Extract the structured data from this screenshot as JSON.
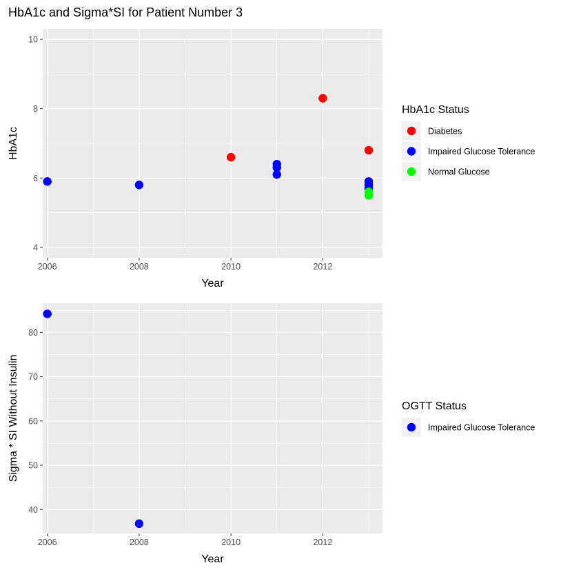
{
  "title": "HbA1c and Sigma*SI for Patient Number 3",
  "colors": {
    "Diabetes": "#ff0000",
    "Impaired Glucose Tolerance": "#0000ff",
    "Normal Glucose": "#00ff00",
    "panel": "#ebebeb",
    "grid": "#ffffff"
  },
  "chart_data": [
    {
      "type": "scatter",
      "xlabel": "Year",
      "ylabel": "HbA1c",
      "xlim": [
        2005.9,
        2013.3
      ],
      "ylim": [
        3.7,
        10.3
      ],
      "x_ticks": [
        2006,
        2008,
        2010,
        2012
      ],
      "y_ticks": [
        4,
        6,
        8,
        10
      ],
      "grid": true,
      "legend": {
        "title": "HbA1c Status",
        "placement": "right",
        "entries": [
          "Diabetes",
          "Impaired Glucose Tolerance",
          "Normal Glucose"
        ]
      },
      "series": [
        {
          "name": "Diabetes",
          "points": [
            [
              2010,
              6.6
            ],
            [
              2012,
              8.3
            ],
            [
              2013,
              6.8
            ]
          ]
        },
        {
          "name": "Impaired Glucose Tolerance",
          "points": [
            [
              2006,
              5.9
            ],
            [
              2008,
              5.8
            ],
            [
              2011,
              6.4
            ],
            [
              2011,
              6.3
            ],
            [
              2011,
              6.1
            ],
            [
              2013,
              5.9
            ],
            [
              2013,
              5.8
            ],
            [
              2013,
              5.7
            ]
          ]
        },
        {
          "name": "Normal Glucose",
          "points": [
            [
              2013,
              5.6
            ],
            [
              2013,
              5.5
            ]
          ]
        }
      ]
    },
    {
      "type": "scatter",
      "xlabel": "Year",
      "ylabel": "Sigma * SI Without Insulin",
      "xlim": [
        2005.9,
        2013.3
      ],
      "ylim": [
        34.6,
        86.6
      ],
      "x_ticks": [
        2006,
        2008,
        2010,
        2012
      ],
      "y_ticks": [
        40,
        50,
        60,
        70,
        80
      ],
      "grid": true,
      "legend": {
        "title": "OGTT Status",
        "placement": "right",
        "entries": [
          "Impaired Glucose Tolerance"
        ]
      },
      "series": [
        {
          "name": "Impaired Glucose Tolerance",
          "points": [
            [
              2006,
              84.2
            ],
            [
              2008,
              36.8
            ]
          ]
        }
      ]
    }
  ]
}
